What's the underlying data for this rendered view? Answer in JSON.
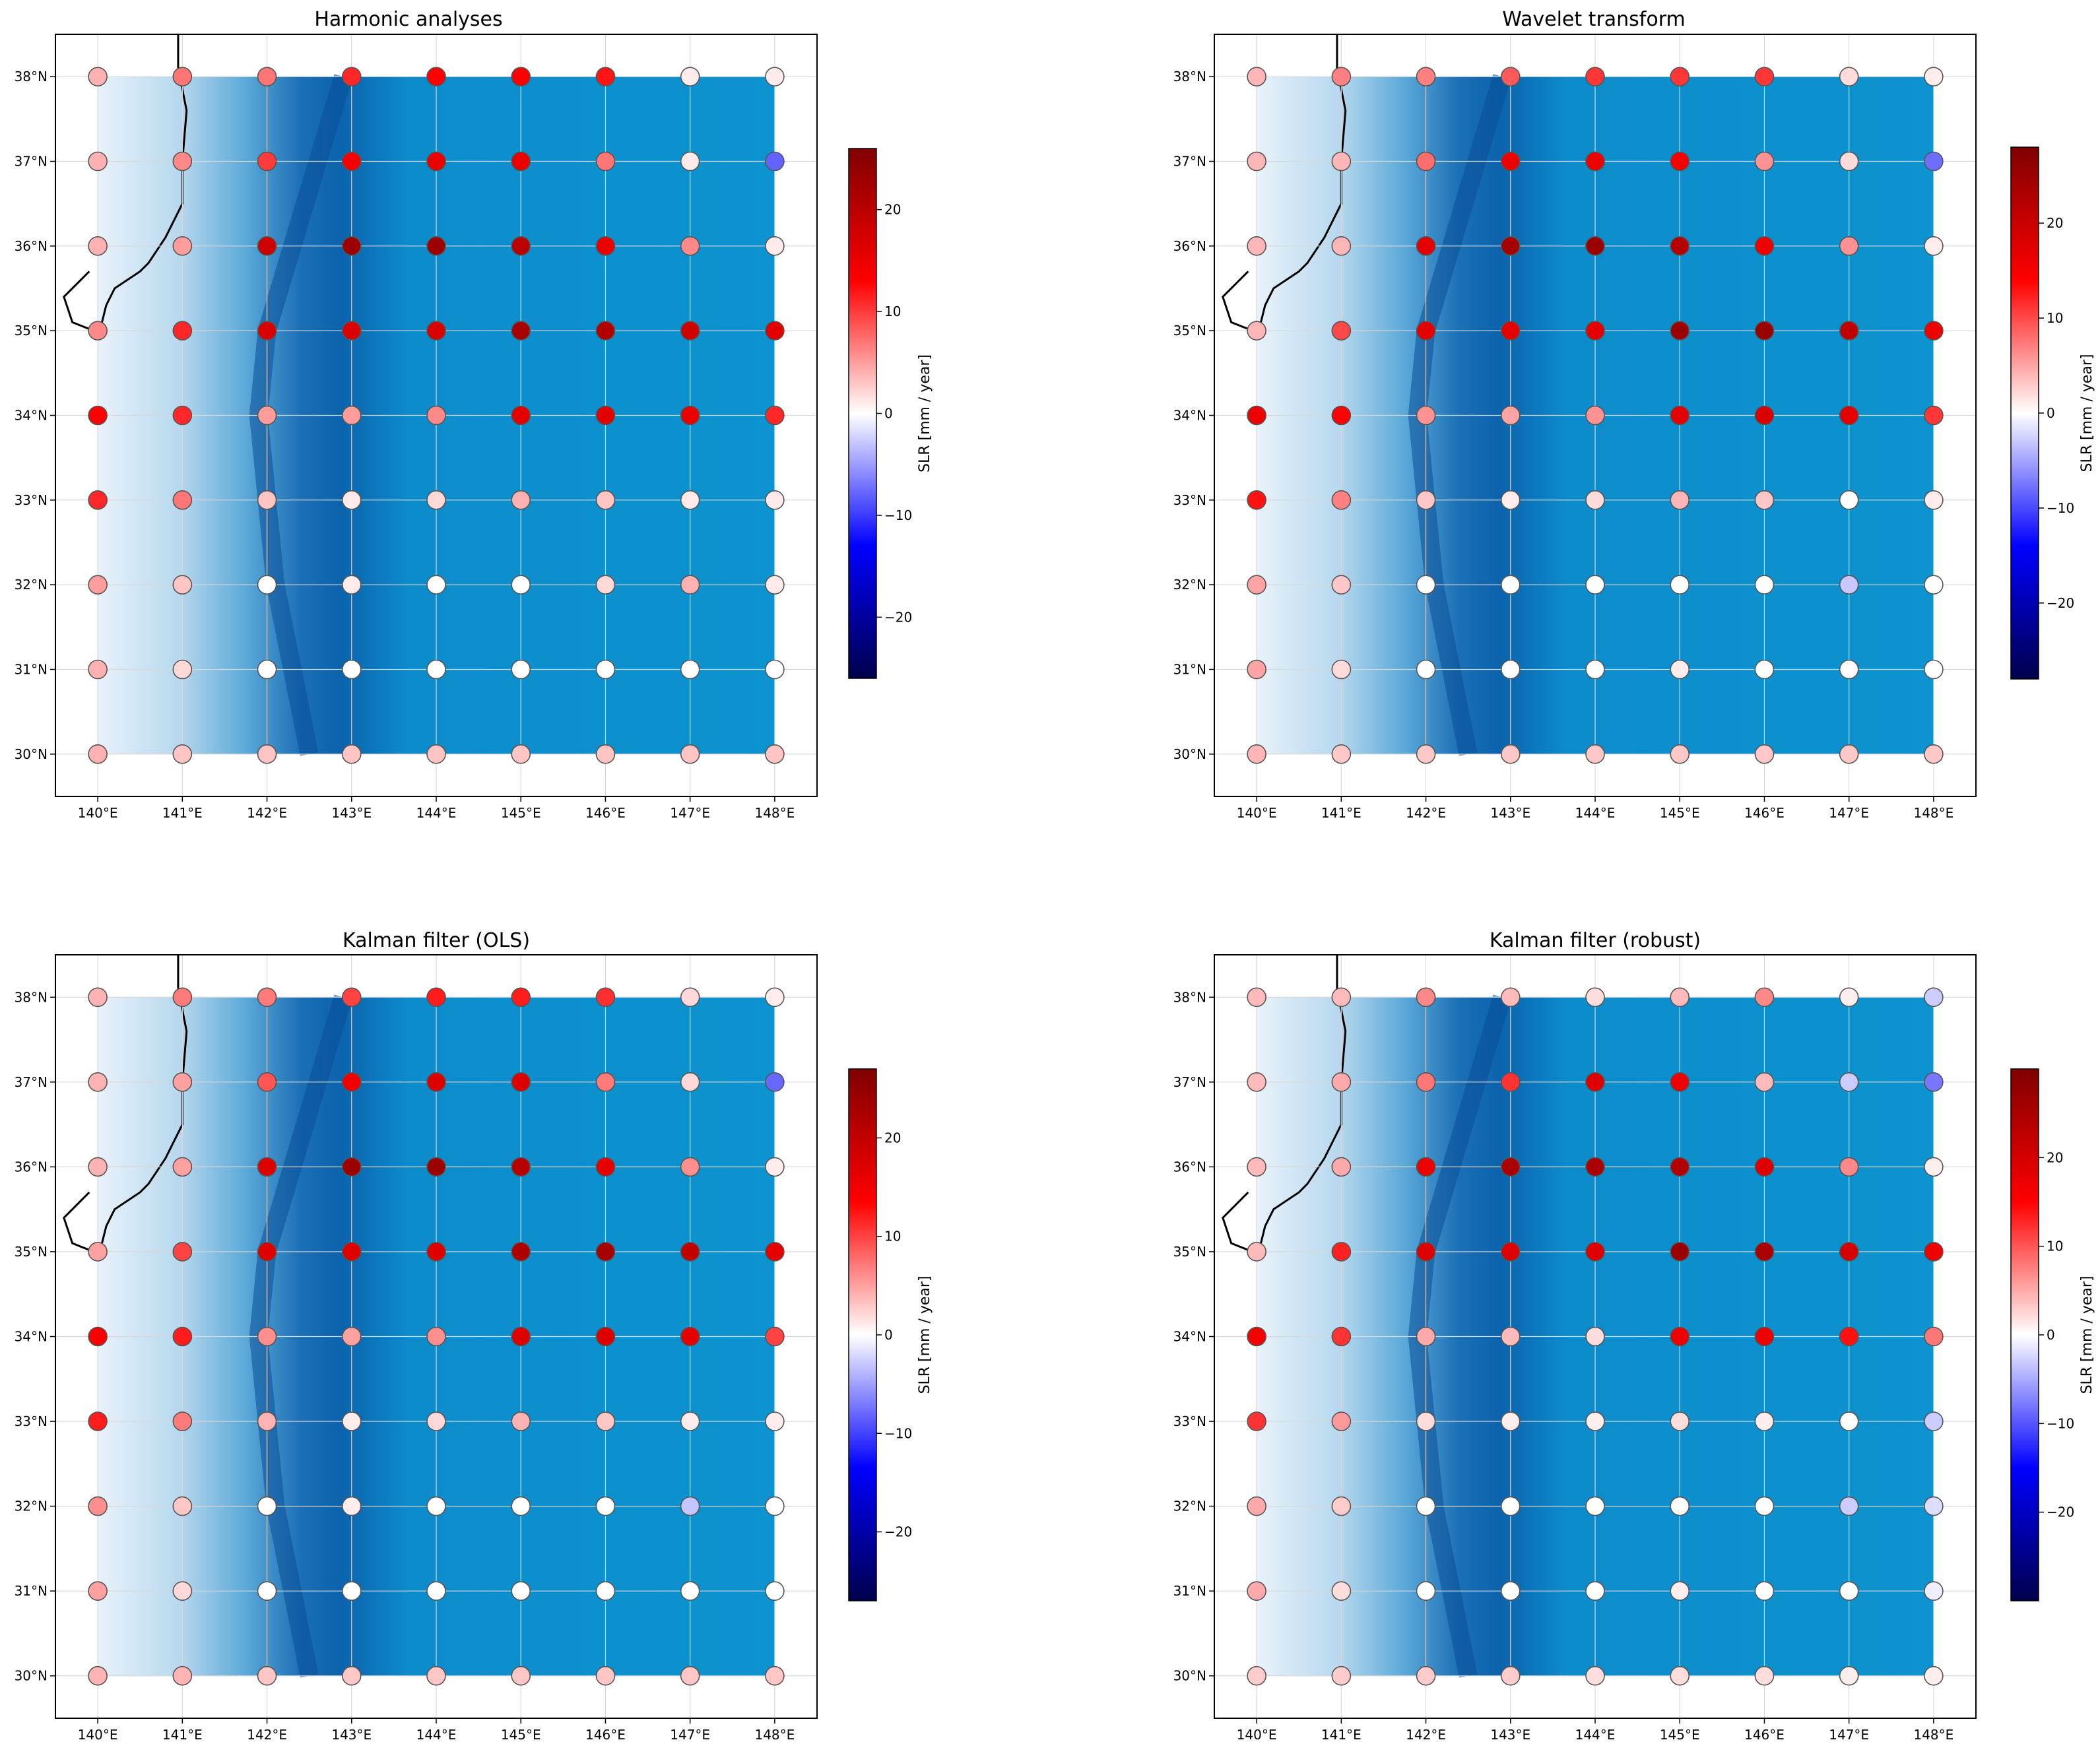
{
  "colorbar": {
    "label": "SLR [mm / year]",
    "colormap": "seismic",
    "stops": [
      "#00004c",
      "#0000ff",
      "#ffffff",
      "#ff0000",
      "#800000"
    ]
  },
  "chart_data": [
    {
      "type": "scatter",
      "title": "Harmonic analyses",
      "x_ticks": [
        "140°E",
        "141°E",
        "142°E",
        "143°E",
        "144°E",
        "145°E",
        "146°E",
        "147°E",
        "148°E"
      ],
      "y_ticks": [
        "30°N",
        "31°N",
        "32°N",
        "33°N",
        "34°N",
        "35°N",
        "36°N",
        "37°N",
        "38°N"
      ],
      "x_range": [
        139.5,
        148.5
      ],
      "y_range": [
        29.5,
        38.5
      ],
      "colorbar_ticks": [
        -20,
        -10,
        0,
        10,
        20
      ],
      "clim": [
        -26,
        26
      ],
      "grid_lon": [
        140,
        141,
        142,
        143,
        144,
        145,
        146,
        147,
        148
      ],
      "grid_lat": [
        38,
        37,
        36,
        35,
        34,
        33,
        32,
        31,
        30
      ],
      "slr_values": [
        [
          null,
          7,
          7,
          11,
          13,
          13,
          12,
          1,
          1
        ],
        [
          null,
          6,
          10,
          14,
          15,
          15,
          7,
          1,
          -8
        ],
        [
          null,
          5,
          18,
          23,
          23,
          20,
          15,
          6,
          1
        ],
        [
          6,
          11,
          17,
          17,
          17,
          22,
          21,
          18,
          16
        ],
        [
          13,
          11,
          5,
          5,
          6,
          16,
          16,
          15,
          11
        ],
        [
          11,
          7,
          3,
          1,
          2,
          4,
          3,
          1,
          1
        ],
        [
          5,
          3,
          0,
          1,
          0,
          0,
          2,
          4,
          1
        ],
        [
          4,
          2,
          0,
          0,
          0,
          0,
          0,
          0,
          0
        ],
        [
          4,
          3,
          3,
          3,
          3,
          3,
          3,
          3,
          3
        ]
      ]
    },
    {
      "type": "scatter",
      "title": "Wavelet transform",
      "x_ticks": [
        "140°E",
        "141°E",
        "142°E",
        "143°E",
        "144°E",
        "145°E",
        "146°E",
        "147°E",
        "148°E"
      ],
      "y_ticks": [
        "30°N",
        "31°N",
        "32°N",
        "33°N",
        "34°N",
        "35°N",
        "36°N",
        "37°N",
        "38°N"
      ],
      "x_range": [
        139.5,
        148.5
      ],
      "y_range": [
        29.5,
        38.5
      ],
      "colorbar_ticks": [
        -20,
        -10,
        0,
        10,
        20
      ],
      "clim": [
        -28,
        28
      ],
      "grid_lon": [
        140,
        141,
        142,
        143,
        144,
        145,
        146,
        147,
        148
      ],
      "grid_lat": [
        38,
        37,
        36,
        35,
        34,
        33,
        32,
        31,
        30
      ],
      "slr_values": [
        [
          null,
          7,
          7,
          9,
          11,
          11,
          11,
          2,
          1
        ],
        [
          null,
          4,
          8,
          16,
          16,
          15,
          6,
          2,
          -8
        ],
        [
          null,
          4,
          17,
          24,
          25,
          22,
          16,
          6,
          1
        ],
        [
          4,
          10,
          17,
          17,
          17,
          25,
          25,
          21,
          16
        ],
        [
          16,
          14,
          6,
          5,
          6,
          17,
          18,
          17,
          11
        ],
        [
          13,
          7,
          3,
          1,
          2,
          4,
          3,
          0,
          1
        ],
        [
          5,
          3,
          0,
          0,
          0,
          0,
          0,
          -3,
          0
        ],
        [
          5,
          2,
          0,
          0,
          0,
          1,
          0,
          0,
          0
        ],
        [
          4,
          3,
          3,
          3,
          3,
          3,
          3,
          3,
          3
        ]
      ]
    },
    {
      "type": "scatter",
      "title": "Kalman filter (OLS)",
      "x_ticks": [
        "140°E",
        "141°E",
        "142°E",
        "143°E",
        "144°E",
        "145°E",
        "146°E",
        "147°E",
        "148°E"
      ],
      "y_ticks": [
        "30°N",
        "31°N",
        "32°N",
        "33°N",
        "34°N",
        "35°N",
        "36°N",
        "37°N",
        "38°N"
      ],
      "x_range": [
        139.5,
        148.5
      ],
      "y_range": [
        29.5,
        38.5
      ],
      "colorbar_ticks": [
        -20,
        -10,
        0,
        10,
        20
      ],
      "clim": [
        -27,
        27
      ],
      "grid_lon": [
        140,
        141,
        142,
        143,
        144,
        145,
        146,
        147,
        148
      ],
      "grid_lat": [
        38,
        37,
        36,
        35,
        34,
        33,
        32,
        31,
        30
      ],
      "slr_values": [
        [
          null,
          7,
          7,
          10,
          12,
          12,
          11,
          2,
          1
        ],
        [
          null,
          5,
          9,
          15,
          17,
          17,
          7,
          2,
          -8
        ],
        [
          null,
          5,
          17,
          24,
          24,
          21,
          16,
          6,
          1
        ],
        [
          5,
          10,
          17,
          17,
          17,
          22,
          23,
          20,
          16
        ],
        [
          14,
          12,
          6,
          5,
          6,
          17,
          17,
          16,
          10
        ],
        [
          12,
          7,
          4,
          1,
          2,
          4,
          3,
          1,
          1
        ],
        [
          6,
          3,
          0,
          1,
          0,
          0,
          0,
          -3,
          0
        ],
        [
          5,
          2,
          0,
          0,
          0,
          0,
          0,
          0,
          0
        ],
        [
          4,
          4,
          3,
          3,
          3,
          3,
          3,
          3,
          3
        ]
      ]
    },
    {
      "type": "scatter",
      "title": "Kalman filter (robust)",
      "x_ticks": [
        "140°E",
        "141°E",
        "142°E",
        "143°E",
        "144°E",
        "145°E",
        "146°E",
        "147°E",
        "148°E"
      ],
      "y_ticks": [
        "30°N",
        "31°N",
        "32°N",
        "33°N",
        "34°N",
        "35°N",
        "36°N",
        "37°N",
        "38°N"
      ],
      "x_range": [
        139.5,
        148.5
      ],
      "y_range": [
        29.5,
        38.5
      ],
      "colorbar_ticks": [
        -20,
        -10,
        0,
        10,
        20
      ],
      "clim": [
        -30,
        30
      ],
      "grid_lon": [
        140,
        141,
        142,
        143,
        144,
        145,
        146,
        147,
        148
      ],
      "grid_lat": [
        38,
        37,
        36,
        35,
        34,
        33,
        32,
        31,
        30
      ],
      "slr_values": [
        [
          null,
          4,
          7,
          4,
          2,
          4,
          7,
          1,
          -3
        ],
        [
          null,
          5,
          8,
          12,
          19,
          17,
          4,
          -3,
          -8
        ],
        [
          null,
          5,
          17,
          25,
          25,
          24,
          19,
          7,
          1
        ],
        [
          4,
          13,
          19,
          19,
          19,
          27,
          25,
          20,
          17
        ],
        [
          16,
          12,
          5,
          4,
          2,
          17,
          17,
          14,
          8
        ],
        [
          12,
          6,
          2,
          1,
          1,
          2,
          1,
          0,
          -3
        ],
        [
          5,
          3,
          0,
          0,
          0,
          0,
          0,
          -3,
          -2
        ],
        [
          5,
          2,
          0,
          0,
          0,
          1,
          0,
          0,
          -1
        ],
        [
          3,
          3,
          3,
          3,
          2,
          2,
          2,
          1,
          1
        ]
      ]
    }
  ]
}
